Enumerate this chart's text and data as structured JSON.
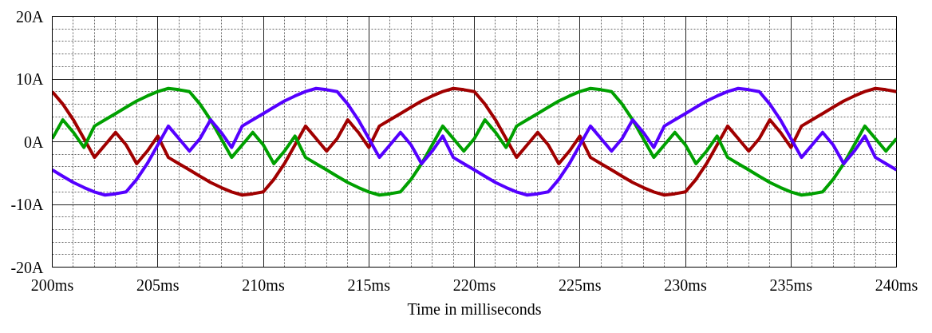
{
  "chart_data": {
    "type": "line",
    "xlabel": "Time in milliseconds",
    "x": [
      200,
      200.5,
      201,
      201.5,
      202,
      202.5,
      203,
      203.5,
      204,
      204.5,
      205,
      205.5,
      206,
      206.5,
      207,
      207.5,
      208,
      208.5,
      209,
      209.5,
      210,
      210.5,
      211,
      211.5,
      212,
      212.5,
      213,
      213.5,
      214,
      214.5,
      215,
      215.5,
      216,
      216.5,
      217,
      217.5,
      218,
      218.5,
      219,
      219.5,
      220,
      220.5,
      221,
      221.5,
      222,
      222.5,
      223,
      223.5,
      224,
      224.5,
      225,
      225.5,
      226,
      226.5,
      227,
      227.5,
      228,
      228.5,
      229,
      229.5,
      230,
      230.5,
      231,
      231.5,
      232,
      232.5,
      233,
      233.5,
      234,
      234.5,
      235,
      235.5,
      236,
      236.5,
      237,
      237.5,
      238,
      238.5,
      239,
      239.5,
      240
    ],
    "series": [
      {
        "color": "#a00000",
        "values": [
          8.0,
          6,
          3.5,
          0.5,
          -2.5,
          -0.5,
          1.5,
          -0.5,
          -3.5,
          -1.5,
          0.9,
          -2.5,
          -3.5,
          -4.5,
          -5.5,
          -6.5,
          -7.3,
          -8,
          -8.5,
          -8.3,
          -8,
          -6,
          -3.5,
          -0.5,
          2.5,
          0.5,
          -1.5,
          0.5,
          3.5,
          1.5,
          -0.9,
          2.5,
          3.5,
          4.5,
          5.5,
          6.5,
          7.3,
          8,
          8.5,
          8.3,
          8.0,
          6,
          3.5,
          0.5,
          -2.5,
          -0.5,
          1.5,
          -0.5,
          -3.5,
          -1.5,
          0.9,
          -2.5,
          -3.5,
          -4.5,
          -5.5,
          -6.5,
          -7.3,
          -8,
          -8.5,
          -8.3,
          -8,
          -6,
          -3.5,
          -0.5,
          2.5,
          0.5,
          -1.5,
          0.5,
          3.5,
          1.5,
          -0.9,
          2.5,
          3.5,
          4.5,
          5.5,
          6.5,
          7.3,
          8,
          8.5,
          8.3,
          8.0
        ]
      },
      {
        "color": "#00a000",
        "values": [
          0.5,
          3.5,
          1.5,
          -0.9,
          2.5,
          3.5,
          4.5,
          5.5,
          6.5,
          7.3,
          8,
          8.5,
          8.3,
          8.0,
          6,
          3.5,
          0.5,
          -2.5,
          -0.5,
          1.5,
          -0.5,
          -3.5,
          -1.5,
          0.9,
          -2.5,
          -3.5,
          -4.5,
          -5.5,
          -6.5,
          -7.3,
          -8,
          -8.5,
          -8.3,
          -8,
          -6,
          -3.5,
          -0.5,
          2.5,
          0.5,
          -1.5,
          0.5,
          3.5,
          1.5,
          -0.9,
          2.5,
          3.5,
          4.5,
          5.5,
          6.5,
          7.3,
          8,
          8.5,
          8.3,
          8.0,
          6,
          3.5,
          0.5,
          -2.5,
          -0.5,
          1.5,
          -0.5,
          -3.5,
          -1.5,
          0.9,
          -2.5,
          -3.5,
          -4.5,
          -5.5,
          -6.5,
          -7.3,
          -8,
          -8.5,
          -8.3,
          -8,
          -6,
          -3.5,
          -0.5,
          2.5,
          0.5,
          -1.5,
          0.5
        ]
      },
      {
        "color": "#5500ff",
        "values": [
          -4.5,
          -5.5,
          -6.5,
          -7.3,
          -8,
          -8.5,
          -8.3,
          -8,
          -6,
          -3.5,
          -0.5,
          2.5,
          0.5,
          -1.5,
          0.5,
          3.5,
          1.5,
          -0.9,
          2.5,
          3.5,
          4.5,
          5.5,
          6.5,
          7.3,
          8,
          8.5,
          8.3,
          8.0,
          6,
          3.5,
          0.5,
          -2.5,
          -0.5,
          1.5,
          -0.5,
          -3.5,
          -1.5,
          0.9,
          -2.5,
          -3.5,
          -4.5,
          -5.5,
          -6.5,
          -7.3,
          -8,
          -8.5,
          -8.3,
          -8,
          -6,
          -3.5,
          -0.5,
          2.5,
          0.5,
          -1.5,
          0.5,
          3.5,
          1.5,
          -0.9,
          2.5,
          3.5,
          4.5,
          5.5,
          6.5,
          7.3,
          8,
          8.5,
          8.3,
          8.0,
          6,
          3.5,
          0.5,
          -2.5,
          -0.5,
          1.5,
          -0.5,
          -3.5,
          -1.5,
          0.9,
          -2.5,
          -3.5,
          -4.5
        ]
      }
    ],
    "xlim": [
      200,
      240
    ],
    "xticks": [
      {
        "value": 200,
        "label": "200ms"
      },
      {
        "value": 205,
        "label": "205ms"
      },
      {
        "value": 210,
        "label": "210ms"
      },
      {
        "value": 215,
        "label": "215ms"
      },
      {
        "value": 220,
        "label": "220ms"
      },
      {
        "value": 225,
        "label": "225ms"
      },
      {
        "value": 230,
        "label": "230ms"
      },
      {
        "value": 235,
        "label": "235ms"
      },
      {
        "value": 240,
        "label": "240ms"
      }
    ],
    "ylim": [
      -20,
      20
    ],
    "yticks": [
      {
        "value": -20,
        "label": "-20A"
      },
      {
        "value": -10,
        "label": "-10A"
      },
      {
        "value": 0,
        "label": "0A"
      },
      {
        "value": 10,
        "label": "10A"
      },
      {
        "value": 20,
        "label": "20A"
      }
    ],
    "grid": true
  }
}
